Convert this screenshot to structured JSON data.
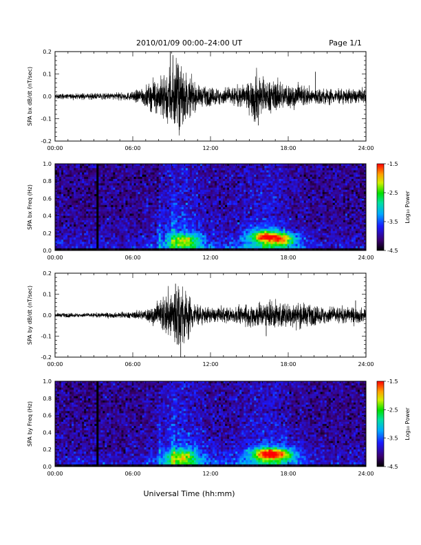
{
  "header": {
    "title": "2010/01/09  00:00–24:00 UT",
    "page": "Page 1/1"
  },
  "footer": {
    "xlabel": "Universal Time (hh:mm)"
  },
  "colors": {
    "trace": "#000000",
    "frame": "#000000",
    "background": "#ffffff"
  },
  "chart_data": [
    {
      "type": "line",
      "id": "bx-dbdt",
      "ylabel": "SPA bx dB/dt (nT/sec)",
      "xlim": [
        0,
        24
      ],
      "ylim": [
        -0.2,
        0.2
      ],
      "x_ticks": [
        "00:00",
        "06:00",
        "12:00",
        "18:00",
        "24:00"
      ],
      "y_ticks": [
        "0.2",
        "0.1",
        "0.0",
        "-0.1",
        "-0.2"
      ],
      "envelope": {
        "hours": [
          0,
          2,
          4,
          6,
          7,
          8,
          8.5,
          9,
          9.5,
          10,
          10.5,
          11,
          12,
          13,
          14,
          15,
          15.5,
          16,
          17,
          18,
          19,
          20,
          22,
          24
        ],
        "amplitude": [
          0.012,
          0.012,
          0.015,
          0.02,
          0.05,
          0.08,
          0.11,
          0.17,
          0.16,
          0.12,
          0.08,
          0.05,
          0.04,
          0.04,
          0.045,
          0.06,
          0.13,
          0.07,
          0.07,
          0.06,
          0.05,
          0.04,
          0.035,
          0.03
        ]
      },
      "spikes": [
        {
          "hour": 8.9,
          "value": 0.2
        },
        {
          "hour": 9.6,
          "value": -0.15
        },
        {
          "hour": 15.7,
          "value": -0.13
        },
        {
          "hour": 20.1,
          "value": 0.11
        }
      ]
    },
    {
      "type": "heatmap",
      "id": "bx-spectrogram",
      "ylabel": "SPA bx Freq (Hz)",
      "xlim": [
        0,
        24
      ],
      "ylim": [
        0,
        1.0
      ],
      "x_ticks": [
        "00:00",
        "06:00",
        "12:00",
        "18:00",
        "24:00"
      ],
      "y_ticks": [
        "1.0",
        "0.8",
        "0.6",
        "0.4",
        "0.2",
        "0.0"
      ],
      "colorbar": {
        "label": "Log₁₀ Power",
        "range": [
          -4.5,
          -1.5
        ],
        "ticks": [
          "-1.5",
          "-2.5",
          "-3.5",
          "-4.5"
        ]
      },
      "hotspots": [
        {
          "hour": 10.0,
          "freq": 0.12,
          "log_power": -2.6
        },
        {
          "hour": 16.2,
          "freq": 0.16,
          "log_power": -1.8
        },
        {
          "hour": 17.6,
          "freq": 0.13,
          "log_power": -2.2
        }
      ]
    },
    {
      "type": "line",
      "id": "by-dbdt",
      "ylabel": "SPA by dB/dt (nT/sec)",
      "xlim": [
        0,
        24
      ],
      "ylim": [
        -0.2,
        0.2
      ],
      "x_ticks": [
        "00:00",
        "06:00",
        "12:00",
        "18:00",
        "24:00"
      ],
      "y_ticks": [
        "0.2",
        "0.1",
        "0.0",
        "-0.1",
        "-0.2"
      ],
      "envelope": {
        "hours": [
          0,
          2,
          4,
          6,
          7,
          8,
          8.5,
          9,
          9.5,
          10,
          10.5,
          11,
          12,
          13,
          14,
          15,
          15.5,
          16,
          17,
          18,
          19,
          20,
          22,
          24
        ],
        "amplitude": [
          0.01,
          0.01,
          0.012,
          0.015,
          0.03,
          0.06,
          0.1,
          0.15,
          0.17,
          0.14,
          0.09,
          0.05,
          0.035,
          0.035,
          0.04,
          0.05,
          0.07,
          0.06,
          0.07,
          0.055,
          0.06,
          0.045,
          0.04,
          0.035
        ]
      },
      "spikes": [
        {
          "hour": 9.7,
          "value": -0.2
        },
        {
          "hour": 9.3,
          "value": 0.15
        },
        {
          "hour": 16.3,
          "value": -0.1
        },
        {
          "hour": 23.2,
          "value": 0.07
        }
      ]
    },
    {
      "type": "heatmap",
      "id": "by-spectrogram",
      "ylabel": "SPA by Freq (Hz)",
      "xlim": [
        0,
        24
      ],
      "ylim": [
        0,
        1.0
      ],
      "x_ticks": [
        "00:00",
        "06:00",
        "12:00",
        "18:00",
        "24:00"
      ],
      "y_ticks": [
        "1.0",
        "0.8",
        "0.6",
        "0.4",
        "0.2",
        "0.0"
      ],
      "colorbar": {
        "label": "Log₁₀ Power",
        "range": [
          -4.5,
          -1.5
        ],
        "ticks": [
          "-1.5",
          "-2.5",
          "-3.5",
          "-4.5"
        ]
      },
      "hotspots": [
        {
          "hour": 9.8,
          "freq": 0.12,
          "log_power": -2.5
        },
        {
          "hour": 16.3,
          "freq": 0.15,
          "log_power": -1.9
        },
        {
          "hour": 17.5,
          "freq": 0.14,
          "log_power": -2.3
        }
      ]
    }
  ]
}
